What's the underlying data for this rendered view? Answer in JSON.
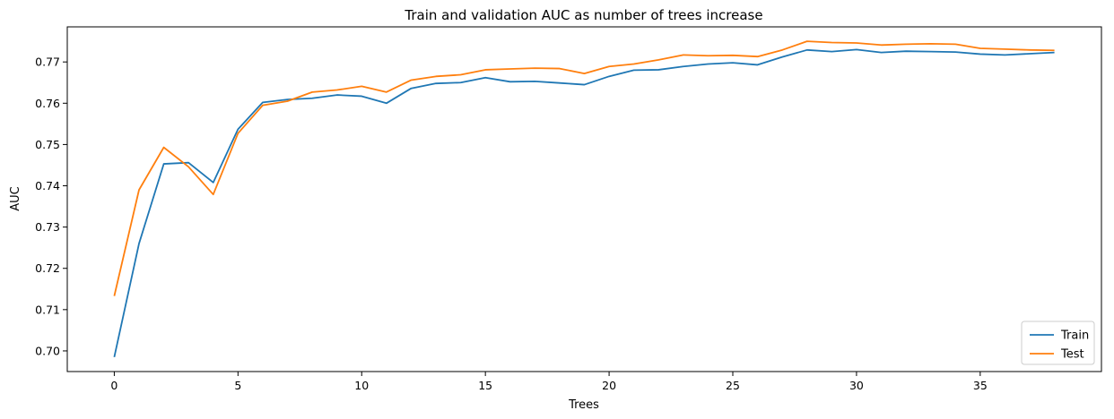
{
  "chart_data": {
    "type": "line",
    "title": "Train and validation AUC as number of trees increase",
    "xlabel": "Trees",
    "ylabel": "AUC",
    "xlim": [
      -1.9,
      39.9
    ],
    "ylim": [
      0.695,
      0.7785
    ],
    "xticks": [
      0,
      5,
      10,
      15,
      20,
      25,
      30,
      35
    ],
    "xtick_labels": [
      "0",
      "5",
      "10",
      "15",
      "20",
      "25",
      "30",
      "35"
    ],
    "yticks": [
      0.7,
      0.71,
      0.72,
      0.73,
      0.74,
      0.75,
      0.76,
      0.77
    ],
    "ytick_labels": [
      "0.70",
      "0.71",
      "0.72",
      "0.73",
      "0.74",
      "0.75",
      "0.76",
      "0.77"
    ],
    "grid": false,
    "legend": "lower-right",
    "x": [
      0,
      1,
      2,
      3,
      4,
      5,
      6,
      7,
      8,
      9,
      10,
      11,
      12,
      13,
      14,
      15,
      16,
      17,
      18,
      19,
      20,
      21,
      22,
      23,
      24,
      25,
      26,
      27,
      28,
      29,
      30,
      31,
      32,
      33,
      34,
      35,
      36,
      37,
      38
    ],
    "series": [
      {
        "name": "Train",
        "color": "#1f77b4",
        "values": [
          0.6985,
          0.726,
          0.7453,
          0.7456,
          0.7408,
          0.7537,
          0.7602,
          0.7609,
          0.7612,
          0.762,
          0.7617,
          0.76,
          0.7636,
          0.7648,
          0.765,
          0.7662,
          0.7652,
          0.7653,
          0.7649,
          0.7645,
          0.7665,
          0.768,
          0.7681,
          0.7689,
          0.7695,
          0.7698,
          0.7693,
          0.7712,
          0.7729,
          0.7725,
          0.773,
          0.7723,
          0.7726,
          0.7725,
          0.7724,
          0.7719,
          0.7717,
          0.772,
          0.7723
        ]
      },
      {
        "name": "Test",
        "color": "#ff7f0e",
        "values": [
          0.7133,
          0.739,
          0.7493,
          0.7446,
          0.7379,
          0.7527,
          0.7595,
          0.7605,
          0.7627,
          0.7632,
          0.7641,
          0.7627,
          0.7656,
          0.7665,
          0.7669,
          0.7681,
          0.7683,
          0.7685,
          0.7684,
          0.7672,
          0.7689,
          0.7695,
          0.7705,
          0.7717,
          0.7715,
          0.7716,
          0.7713,
          0.7729,
          0.775,
          0.7747,
          0.7746,
          0.7741,
          0.7743,
          0.7744,
          0.7743,
          0.7733,
          0.7731,
          0.7729,
          0.7728
        ]
      }
    ]
  }
}
